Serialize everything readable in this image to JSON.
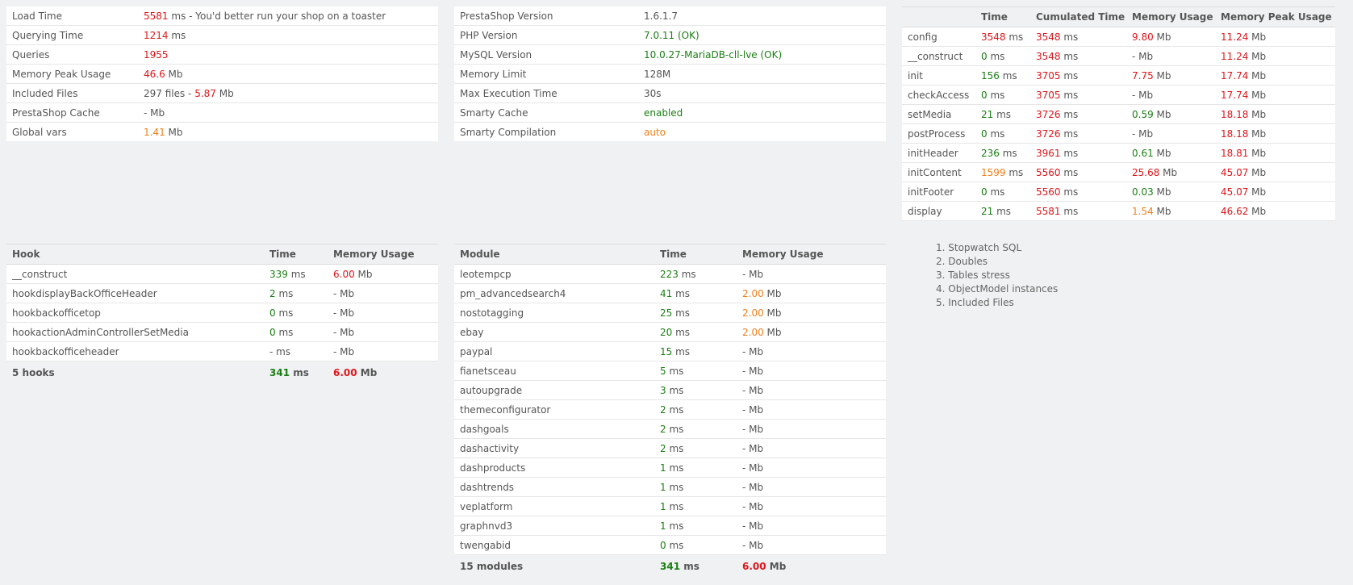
{
  "summary": [
    {
      "label": "Load Time",
      "parts": [
        {
          "t": "5581",
          "c": "red"
        },
        {
          "t": " ms - You'd better run your shop on a toaster",
          "c": "grey"
        }
      ]
    },
    {
      "label": "Querying Time",
      "parts": [
        {
          "t": "1214",
          "c": "red"
        },
        {
          "t": " ms",
          "c": "grey"
        }
      ]
    },
    {
      "label": "Queries",
      "parts": [
        {
          "t": "1955",
          "c": "red"
        }
      ]
    },
    {
      "label": "Memory Peak Usage",
      "parts": [
        {
          "t": "46.6",
          "c": "red"
        },
        {
          "t": " Mb",
          "c": "grey"
        }
      ]
    },
    {
      "label": "Included Files",
      "parts": [
        {
          "t": "297 files - ",
          "c": "grey"
        },
        {
          "t": "5.87",
          "c": "red"
        },
        {
          "t": " Mb",
          "c": "grey"
        }
      ]
    },
    {
      "label": "PrestaShop Cache",
      "parts": [
        {
          "t": "- Mb",
          "c": "grey"
        }
      ]
    },
    {
      "label": "Global vars",
      "parts": [
        {
          "t": "1.41",
          "c": "orange"
        },
        {
          "t": " Mb",
          "c": "grey"
        }
      ]
    }
  ],
  "config": [
    {
      "label": "PrestaShop Version",
      "parts": [
        {
          "t": "1.6.1.7",
          "c": "grey"
        }
      ]
    },
    {
      "label": "PHP Version",
      "parts": [
        {
          "t": "7.0.11 (OK)",
          "c": "green"
        }
      ]
    },
    {
      "label": "MySQL Version",
      "parts": [
        {
          "t": "10.0.27-MariaDB-cll-lve (OK)",
          "c": "green"
        }
      ]
    },
    {
      "label": "Memory Limit",
      "parts": [
        {
          "t": "128M",
          "c": "grey"
        }
      ]
    },
    {
      "label": "Max Execution Time",
      "parts": [
        {
          "t": "30s",
          "c": "grey"
        }
      ]
    },
    {
      "label": "Smarty Cache",
      "parts": [
        {
          "t": "enabled",
          "c": "green"
        }
      ]
    },
    {
      "label": "Smarty Compilation",
      "parts": [
        {
          "t": "auto",
          "c": "orange"
        }
      ]
    }
  ],
  "steps": {
    "headers": [
      "",
      "Time",
      "Cumulated Time",
      "Memory Usage",
      "Memory Peak Usage"
    ],
    "rows": [
      {
        "name": "config",
        "time": "3548",
        "tc": "red",
        "cum": "3548",
        "mem": "9.80",
        "mc": "red",
        "peak": "11.24"
      },
      {
        "name": "__construct",
        "time": "0",
        "tc": "green",
        "cum": "3548",
        "mem": "-",
        "mc": "grey",
        "peak": "11.24"
      },
      {
        "name": "init",
        "time": "156",
        "tc": "green",
        "cum": "3705",
        "mem": "7.75",
        "mc": "red",
        "peak": "17.74"
      },
      {
        "name": "checkAccess",
        "time": "0",
        "tc": "green",
        "cum": "3705",
        "mem": "-",
        "mc": "grey",
        "peak": "17.74"
      },
      {
        "name": "setMedia",
        "time": "21",
        "tc": "green",
        "cum": "3726",
        "mem": "0.59",
        "mc": "green",
        "peak": "18.18"
      },
      {
        "name": "postProcess",
        "time": "0",
        "tc": "green",
        "cum": "3726",
        "mem": "-",
        "mc": "grey",
        "peak": "18.18"
      },
      {
        "name": "initHeader",
        "time": "236",
        "tc": "green",
        "cum": "3961",
        "mem": "0.61",
        "mc": "green",
        "peak": "18.81"
      },
      {
        "name": "initContent",
        "time": "1599",
        "tc": "orange",
        "cum": "5560",
        "mem": "25.68",
        "mc": "red",
        "peak": "45.07"
      },
      {
        "name": "initFooter",
        "time": "0",
        "tc": "green",
        "cum": "5560",
        "mem": "0.03",
        "mc": "green",
        "peak": "45.07"
      },
      {
        "name": "display",
        "time": "21",
        "tc": "green",
        "cum": "5581",
        "mem": "1.54",
        "mc": "orange",
        "peak": "46.62"
      }
    ],
    "ms_unit": " ms",
    "mb_unit": " Mb"
  },
  "hooks": {
    "headers": [
      "Hook",
      "Time",
      "Memory Usage"
    ],
    "rows": [
      {
        "name": "__construct",
        "time": "339",
        "tc": "green",
        "mem": "6.00",
        "mc": "red"
      },
      {
        "name": "hookdisplayBackOfficeHeader",
        "time": "2",
        "tc": "green",
        "mem": "-",
        "mc": "grey"
      },
      {
        "name": "hookbackofficetop",
        "time": "0",
        "tc": "green",
        "mem": "-",
        "mc": "grey"
      },
      {
        "name": "hookactionAdminControllerSetMedia",
        "time": "0",
        "tc": "green",
        "mem": "-",
        "mc": "grey"
      },
      {
        "name": "hookbackofficeheader",
        "time": "-",
        "tc": "grey",
        "mem": "-",
        "mc": "grey"
      }
    ],
    "footer": {
      "name": "5 hooks",
      "time": "341",
      "tc": "green",
      "mem": "6.00",
      "mc": "red"
    }
  },
  "modules": {
    "headers": [
      "Module",
      "Time",
      "Memory Usage"
    ],
    "rows": [
      {
        "name": "leotempcp",
        "time": "223",
        "tc": "green",
        "mem": "-",
        "mc": "grey"
      },
      {
        "name": "pm_advancedsearch4",
        "time": "41",
        "tc": "green",
        "mem": "2.00",
        "mc": "orange"
      },
      {
        "name": "nostotagging",
        "time": "25",
        "tc": "green",
        "mem": "2.00",
        "mc": "orange"
      },
      {
        "name": "ebay",
        "time": "20",
        "tc": "green",
        "mem": "2.00",
        "mc": "orange"
      },
      {
        "name": "paypal",
        "time": "15",
        "tc": "green",
        "mem": "-",
        "mc": "grey"
      },
      {
        "name": "fianetsceau",
        "time": "5",
        "tc": "green",
        "mem": "-",
        "mc": "grey"
      },
      {
        "name": "autoupgrade",
        "time": "3",
        "tc": "green",
        "mem": "-",
        "mc": "grey"
      },
      {
        "name": "themeconfigurator",
        "time": "2",
        "tc": "green",
        "mem": "-",
        "mc": "grey"
      },
      {
        "name": "dashgoals",
        "time": "2",
        "tc": "green",
        "mem": "-",
        "mc": "grey"
      },
      {
        "name": "dashactivity",
        "time": "2",
        "tc": "green",
        "mem": "-",
        "mc": "grey"
      },
      {
        "name": "dashproducts",
        "time": "1",
        "tc": "green",
        "mem": "-",
        "mc": "grey"
      },
      {
        "name": "dashtrends",
        "time": "1",
        "tc": "green",
        "mem": "-",
        "mc": "grey"
      },
      {
        "name": "veplatform",
        "time": "1",
        "tc": "green",
        "mem": "-",
        "mc": "grey"
      },
      {
        "name": "graphnvd3",
        "time": "1",
        "tc": "green",
        "mem": "-",
        "mc": "grey"
      },
      {
        "name": "twengabid",
        "time": "0",
        "tc": "green",
        "mem": "-",
        "mc": "grey"
      }
    ],
    "footer": {
      "name": "15 modules",
      "time": "341",
      "tc": "green",
      "mem": "6.00",
      "mc": "red"
    }
  },
  "links": [
    "1. Stopwatch SQL",
    "2. Doubles",
    "3. Tables stress",
    "4. ObjectModel instances",
    "5. Included Files"
  ]
}
